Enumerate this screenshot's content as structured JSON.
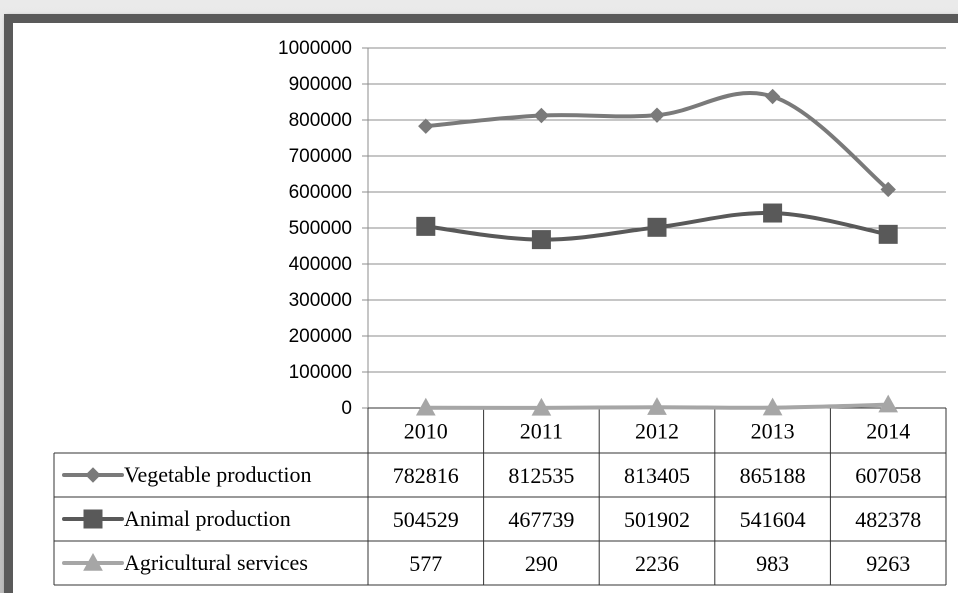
{
  "chart_data": {
    "type": "line",
    "categories": [
      "2010",
      "2011",
      "2012",
      "2013",
      "2014"
    ],
    "series": [
      {
        "name": "Vegetable production",
        "values": [
          782816,
          812535,
          813405,
          865188,
          607058
        ],
        "color": "#7a7a7a",
        "marker": "diamond"
      },
      {
        "name": "Animal production",
        "values": [
          504529,
          467739,
          501902,
          541604,
          482378
        ],
        "color": "#595959",
        "marker": "square"
      },
      {
        "name": "Agricultural services",
        "values": [
          577,
          290,
          2236,
          983,
          9263
        ],
        "color": "#a6a6a6",
        "marker": "triangle"
      }
    ],
    "yticks": [
      "0",
      "100000",
      "200000",
      "300000",
      "400000",
      "500000",
      "600000",
      "700000",
      "800000",
      "900000",
      "1000000"
    ],
    "ylim": [
      0,
      1000000
    ],
    "grid": true,
    "smooth": true,
    "data_table": true,
    "title": "",
    "xlabel": "",
    "ylabel": ""
  }
}
